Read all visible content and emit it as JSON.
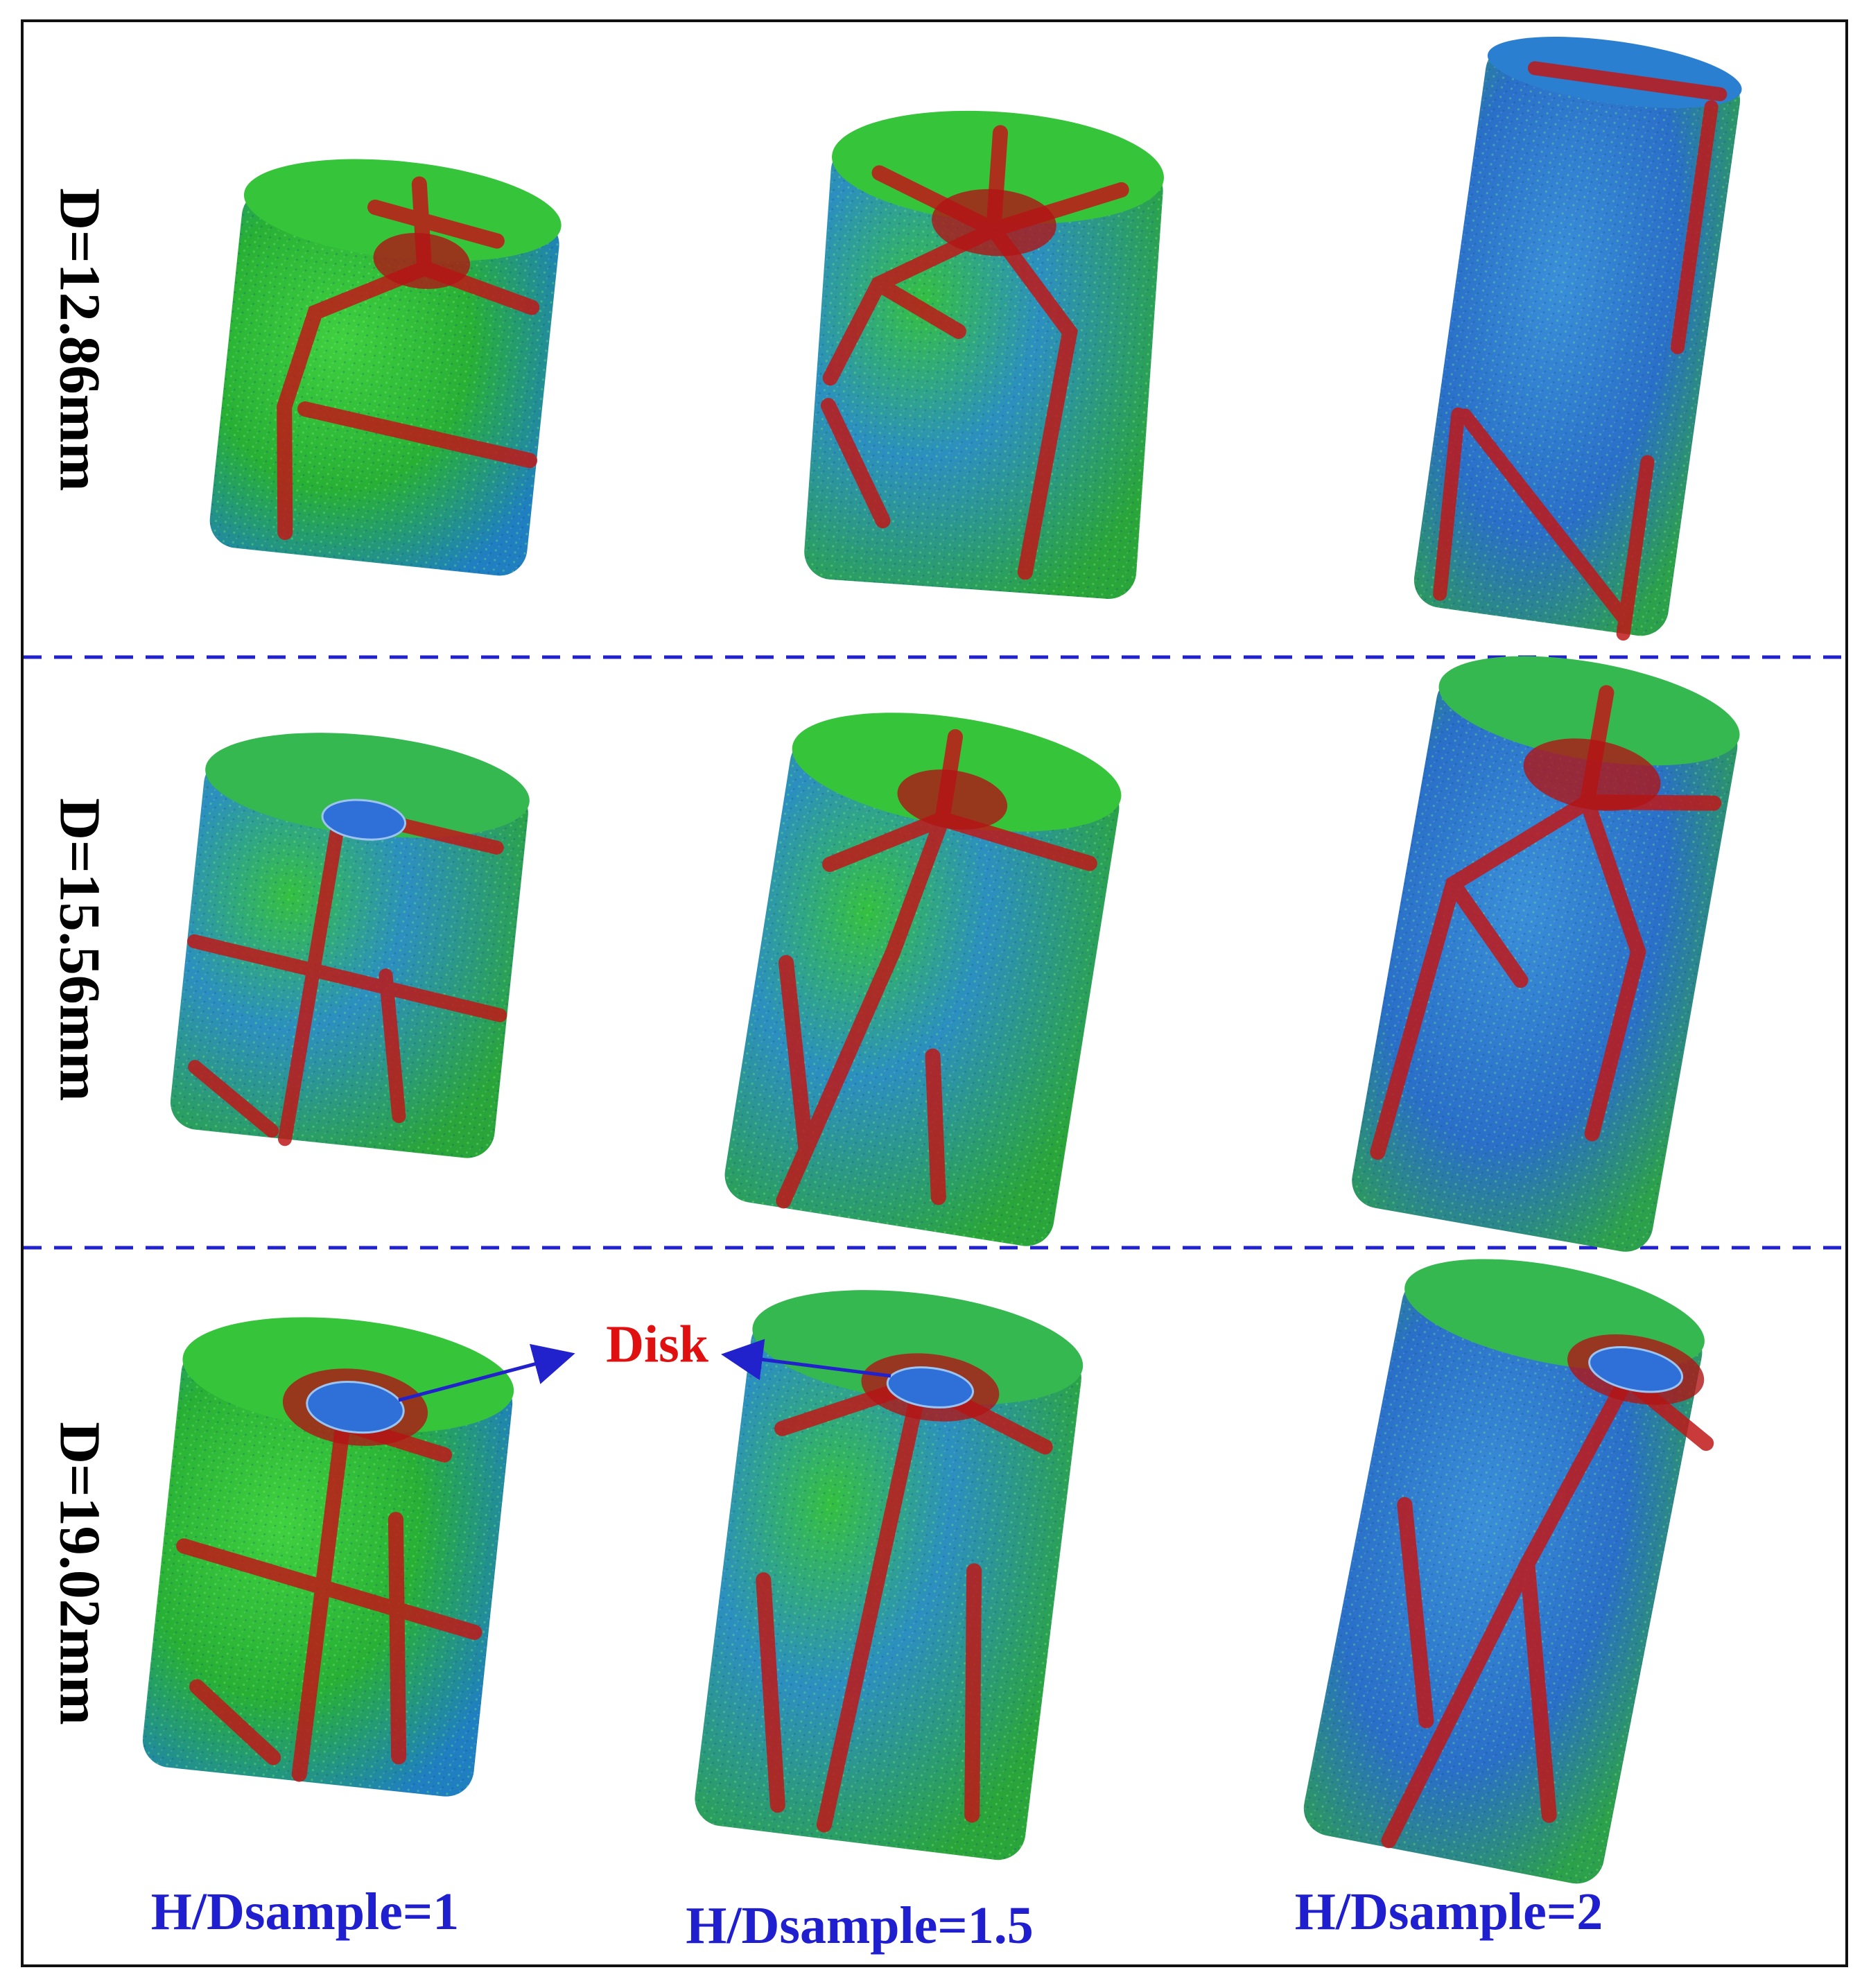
{
  "rows": [
    {
      "label": "D=12.86mm"
    },
    {
      "label": "D=15.56mm"
    },
    {
      "label": "D=19.02mm"
    }
  ],
  "columns": [
    {
      "label": "H/Dsample=1"
    },
    {
      "label": "H/Dsample=1.5"
    },
    {
      "label": "H/Dsample=2"
    }
  ],
  "annotation": {
    "label": "Disk"
  },
  "colors": {
    "particle_green": "#2fbf2f",
    "particle_blue": "#2a6fd0",
    "crack_red": "#c01818",
    "disk_blue": "#2f6fd8",
    "divider": "#2222cc",
    "arrow": "#2222cc",
    "annotation_text": "#e01010",
    "column_text": "#1f1fd0"
  }
}
